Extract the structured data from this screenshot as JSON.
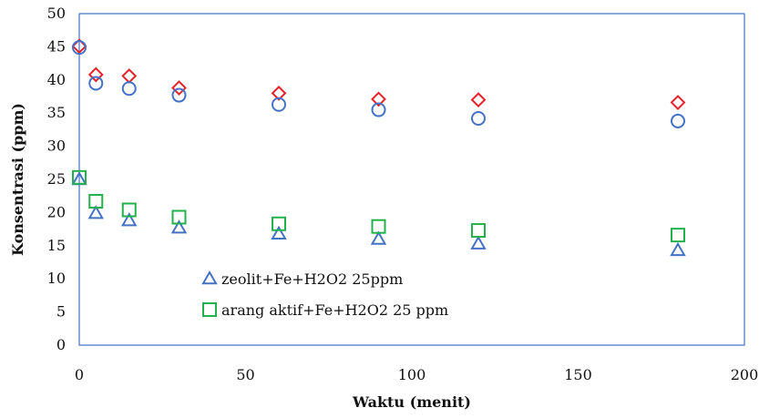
{
  "chart_data": {
    "type": "scatter",
    "title": "",
    "xlabel": "Waktu (menit)",
    "ylabel": "Konsentrasi (ppm)",
    "xlim": [
      0,
      200
    ],
    "ylim": [
      0,
      50
    ],
    "xticks": [
      "0",
      "50",
      "100",
      "150",
      "200"
    ],
    "yticks": [
      "0",
      "5",
      "10",
      "15",
      "20",
      "25",
      "30",
      "35",
      "40",
      "45",
      "50"
    ],
    "grid": false,
    "legend_position": "lower-left inside",
    "series": [
      {
        "name": "",
        "marker": "diamond",
        "color": "#e8222a",
        "in_legend": false,
        "x": [
          0,
          5,
          15,
          30,
          60,
          90,
          120,
          180
        ],
        "y": [
          45.1,
          40.8,
          40.6,
          38.8,
          38.0,
          37.1,
          37.0,
          36.6
        ]
      },
      {
        "name": "",
        "marker": "circle",
        "color": "#4472c4",
        "in_legend": false,
        "x": [
          0,
          5,
          15,
          30,
          60,
          90,
          120,
          180
        ],
        "y": [
          44.9,
          39.5,
          38.7,
          37.7,
          36.3,
          35.5,
          34.2,
          33.8
        ]
      },
      {
        "name": "zeolit+Fe+H2O2 25ppm",
        "marker": "triangle",
        "color": "#4472c4",
        "in_legend": true,
        "x": [
          0,
          5,
          15,
          30,
          60,
          90,
          120,
          180
        ],
        "y": [
          25.0,
          19.9,
          18.8,
          17.7,
          16.8,
          16.0,
          15.3,
          14.3
        ]
      },
      {
        "name": "arang aktif+Fe+H2O2 25 ppm",
        "marker": "square",
        "color": "#22b14c",
        "in_legend": true,
        "x": [
          0,
          5,
          15,
          30,
          60,
          90,
          120,
          180
        ],
        "y": [
          25.3,
          21.7,
          20.4,
          19.3,
          18.3,
          17.9,
          17.3,
          16.6
        ]
      }
    ]
  }
}
